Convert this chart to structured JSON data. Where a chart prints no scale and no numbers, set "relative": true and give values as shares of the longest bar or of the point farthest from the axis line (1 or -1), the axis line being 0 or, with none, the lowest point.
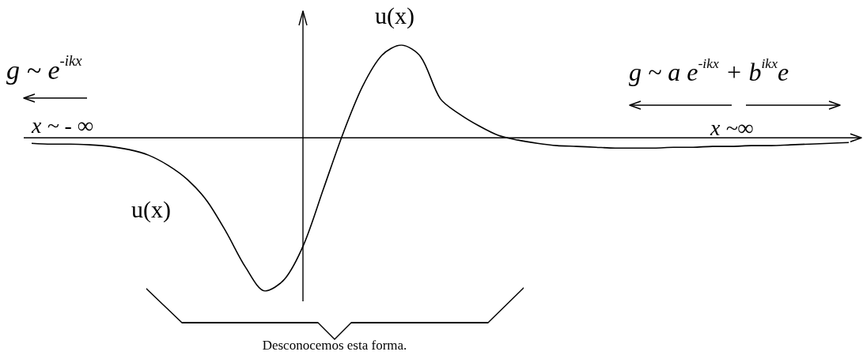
{
  "chart_data": {
    "type": "line",
    "relative": true,
    "marker": "none",
    "color": "#000000",
    "categories": [
      null,
      null,
      null,
      null,
      null,
      null,
      null,
      null,
      null,
      null,
      null,
      null,
      null,
      null,
      null,
      null,
      null,
      null,
      null,
      null,
      null,
      null,
      null,
      null,
      null,
      null,
      null,
      null,
      null,
      null,
      null,
      null,
      null,
      null,
      null,
      null,
      null,
      null,
      null,
      null,
      null,
      null,
      null
    ],
    "values": [
      -0.036,
      -0.041,
      -0.041,
      -0.046,
      -0.056,
      -0.077,
      -0.113,
      -0.179,
      -0.272,
      -0.41,
      -0.615,
      -0.846,
      -1,
      -0.923,
      -0.692,
      -0.333,
      0.026,
      0.333,
      0.538,
      0.605,
      0.528,
      0.256,
      0.154,
      0.077,
      0.015,
      -0.015,
      -0.036,
      -0.051,
      -0.056,
      -0.062,
      -0.067,
      -0.067,
      -0.067,
      -0.062,
      -0.062,
      -0.056,
      -0.056,
      -0.051,
      -0.051,
      -0.046,
      -0.041,
      -0.036,
      -0.031
    ],
    "annotations": [
      "u(x)",
      "u(x)",
      "g ~ e$^{-ikx}$",
      "x ~ - ∞",
      "g ~ a e$^{-ikx}$  +  b$^{ikx}$e",
      "x ~∞",
      "Desconocemos esta forma."
    ]
  }
}
